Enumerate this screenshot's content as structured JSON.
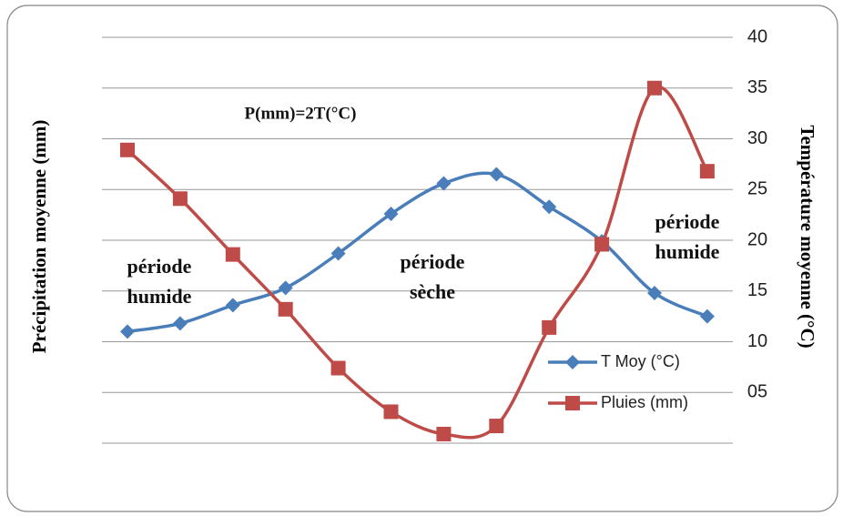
{
  "chart_data": {
    "type": "line",
    "categories": [
      null,
      null,
      null,
      null,
      null,
      null,
      null,
      null,
      null,
      null,
      null,
      null
    ],
    "series": [
      {
        "name": "T Moy (°C)",
        "color": "#4a7ebb",
        "marker": "diamond",
        "values": [
          11.0,
          11.8,
          13.6,
          15.3,
          18.7,
          22.6,
          25.6,
          26.5,
          23.3,
          19.9,
          14.8,
          12.5
        ]
      },
      {
        "name": "Pluies (mm)",
        "color": "#be4b48",
        "marker": "square",
        "values": [
          28.9,
          24.1,
          18.6,
          13.2,
          7.4,
          3.1,
          0.9,
          1.7,
          11.4,
          19.6,
          35.0,
          26.8
        ]
      }
    ],
    "ylim": [
      0,
      40
    ],
    "yticks": [
      {
        "value": 5,
        "label": "05"
      },
      10,
      15,
      20,
      25,
      30,
      35,
      40
    ],
    "ylabel": "Précipitation moyenne (mm)",
    "y2label": "Température moyenne (°C)",
    "grid": true,
    "smooth": true,
    "legend": "right",
    "annotations": [
      {
        "lines": [
          "P(mm)=2T(°C)"
        ]
      },
      {
        "lines": [
          "période",
          "humide"
        ]
      },
      {
        "lines": [
          "période",
          "sèche"
        ]
      },
      {
        "lines": [
          "période",
          "humide"
        ]
      }
    ]
  }
}
